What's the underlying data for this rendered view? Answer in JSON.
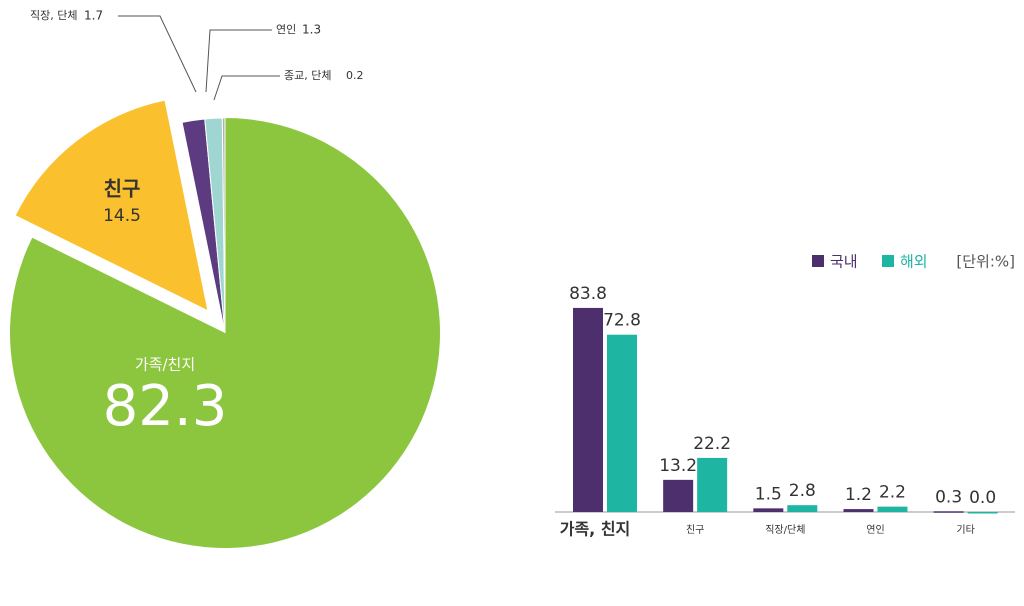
{
  "chart_data": [
    {
      "type": "pie",
      "labels": [
        "가족/친지",
        "친구",
        "직장, 단체",
        "연인",
        "종교, 단체"
      ],
      "values": [
        82.3,
        14.5,
        1.7,
        1.3,
        0.2
      ],
      "colors": [
        "#8cc63f",
        "#fbc02d",
        "#5c3b80",
        "#9fd6d2",
        "#b0b0b0"
      ]
    },
    {
      "type": "bar",
      "categories": [
        "가족, 친지",
        "친구",
        "직장/단체",
        "연인",
        "기타"
      ],
      "series": [
        {
          "name": "국내",
          "color": "#4e2f6e",
          "values": [
            83.8,
            13.2,
            1.5,
            1.2,
            0.3
          ]
        },
        {
          "name": "해외",
          "color": "#1fb5a3",
          "values": [
            72.8,
            22.2,
            2.8,
            2.2,
            0.0
          ],
          "value_labels": [
            "72.8",
            "22.2",
            "2.8",
            "2.2",
            "0.0"
          ]
        }
      ],
      "unit_label": "[단위:%]",
      "ylim": [
        0,
        85
      ]
    }
  ]
}
